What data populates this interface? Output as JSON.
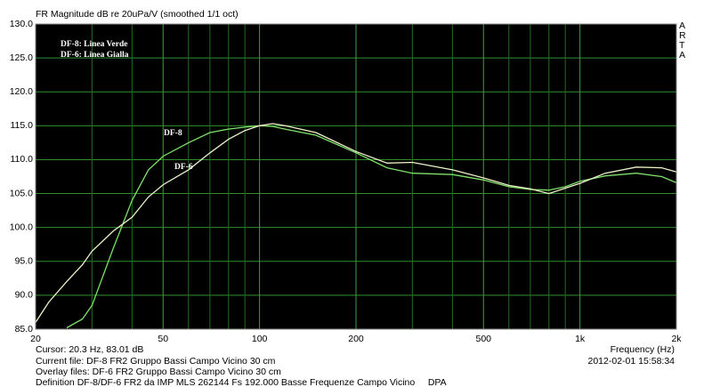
{
  "chart_data": {
    "type": "line",
    "title": "FR Magnitude dB re 20uPa/V (smoothed 1/1 oct)",
    "xlabel": "Frequency (Hz)",
    "side_label": "ARTA",
    "log_x": true,
    "grid": true,
    "xlim": [
      20,
      2000
    ],
    "ylim": [
      85,
      130
    ],
    "xticks": [
      20,
      50,
      100,
      200,
      500,
      {
        "value": 1000,
        "label": "1k"
      },
      {
        "value": 2000,
        "label": "2k"
      }
    ],
    "x_minor_grid": [
      30,
      40,
      60,
      70,
      80,
      90,
      300,
      400,
      600,
      700,
      800,
      900
    ],
    "yticks": [
      {
        "value": 85,
        "label": "85.0"
      },
      {
        "value": 90,
        "label": "90.0"
      },
      {
        "value": 95,
        "label": "95.0"
      },
      {
        "value": 100,
        "label": "100.0"
      },
      {
        "value": 105,
        "label": "105.0"
      },
      {
        "value": 110,
        "label": "110.0"
      },
      {
        "value": 115,
        "label": "115.0"
      },
      {
        "value": 120,
        "label": "120.0"
      },
      {
        "value": 125,
        "label": "125.0"
      },
      {
        "value": 130,
        "label": "130.0"
      }
    ],
    "x": [
      20,
      22,
      25,
      28,
      30,
      35,
      40,
      45,
      50,
      60,
      70,
      80,
      90,
      100,
      110,
      120,
      150,
      200,
      250,
      300,
      400,
      500,
      600,
      700,
      800,
      900,
      1000,
      1200,
      1500,
      1800,
      2000
    ],
    "series": [
      {
        "name": "DF-8",
        "color": "#7fe06a",
        "values": [
          null,
          null,
          85.2,
          86.5,
          88.5,
          97,
          104,
          108.5,
          110.5,
          112.5,
          114,
          114.5,
          114.8,
          115,
          114.9,
          114.5,
          113.6,
          111,
          108.8,
          108,
          107.8,
          107,
          106,
          105.6,
          105.5,
          106,
          106.8,
          107.6,
          108,
          107.5,
          106.6
        ]
      },
      {
        "name": "DF-6",
        "color": "#eef2c8",
        "values": [
          86,
          89,
          92,
          94.5,
          96.5,
          99.5,
          101.5,
          104.5,
          106.3,
          108.5,
          111,
          113,
          114.3,
          115,
          115.3,
          115,
          114,
          111.2,
          109.5,
          109.6,
          108.5,
          107.3,
          106.2,
          105.7,
          105,
          105.8,
          106.5,
          108,
          108.9,
          108.8,
          108.2
        ]
      }
    ],
    "annotations": [
      "DF-8: Linea Verde",
      "DF-6: Linea Gialla"
    ],
    "footer": [
      "Cursor: 20.3 Hz, 83.01 dB",
      "Current file: DF-8 FR2 Gruppo Bassi Campo Vicino 30 cm",
      "Overlay files: DF-6 FR2 Gruppo Bassi Campo Vicino 30 cm",
      "Definition DF-8/DF-6 FR2 da IMP MLS 262144 Fs 192.000 Basse Frequenze Campo Vicino     DPA"
    ],
    "timestamp": "2012-02-01  15:58:34"
  }
}
